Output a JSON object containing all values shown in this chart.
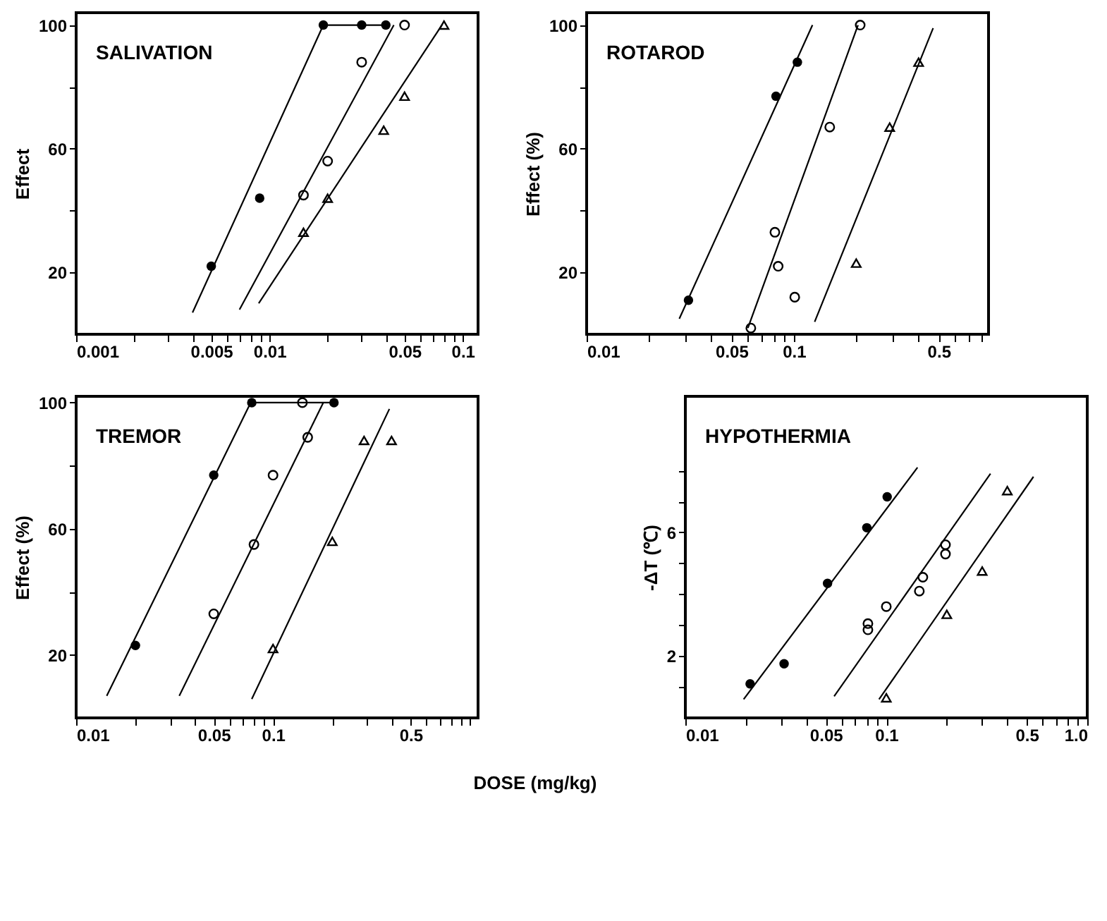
{
  "chart_data": [
    {
      "type": "scatter",
      "title": "SALIVATION",
      "ylabel": "Effect",
      "xlim": [
        0.001,
        0.12
      ],
      "ylim": [
        0,
        104
      ],
      "log": "x",
      "grid": false,
      "xticks": [
        0.001,
        {
          "value": 0.002,
          "label": null
        },
        {
          "value": 0.003,
          "label": null
        },
        {
          "value": 0.004,
          "label": null
        },
        0.005,
        {
          "value": 0.006,
          "label": null
        },
        {
          "value": 0.007,
          "label": null
        },
        {
          "value": 0.008,
          "label": null
        },
        {
          "value": 0.009,
          "label": null
        },
        0.01,
        {
          "value": 0.02,
          "label": null
        },
        {
          "value": 0.03,
          "label": null
        },
        {
          "value": 0.04,
          "label": null
        },
        0.05,
        {
          "value": 0.06,
          "label": null
        },
        {
          "value": 0.07,
          "label": null
        },
        {
          "value": 0.08,
          "label": null
        },
        {
          "value": 0.09,
          "label": null
        },
        0.1
      ],
      "yticks": [
        20,
        {
          "value": 40,
          "label": null
        },
        60,
        {
          "value": 80,
          "label": null
        },
        100
      ],
      "series": [
        {
          "type": "line",
          "color": "#000000",
          "marker": "none",
          "line_style": "solid",
          "x": [
            0.004,
            0.019,
            0.04
          ],
          "values": [
            7,
            100,
            100
          ]
        },
        {
          "type": "line",
          "color": "#000000",
          "marker": "none",
          "line_style": "solid",
          "x": [
            0.007,
            0.044
          ],
          "values": [
            8,
            100
          ]
        },
        {
          "type": "line",
          "color": "#000000",
          "marker": "none",
          "line_style": "solid",
          "x": [
            0.0088,
            0.078
          ],
          "values": [
            10,
            100
          ]
        },
        {
          "color": "#000000",
          "marker": "circle",
          "x": [
            0.005,
            0.0089,
            0.019,
            0.03,
            0.04
          ],
          "values": [
            22,
            44,
            100,
            100,
            100
          ]
        },
        {
          "color": "#000000",
          "marker": "circle",
          "x": [
            0.015,
            0.02,
            0.03,
            0.05
          ],
          "values": [
            45,
            56,
            88,
            100
          ]
        },
        {
          "color": "#000000",
          "marker": "triangle",
          "x": [
            0.015,
            0.02,
            0.039,
            0.05,
            0.08
          ],
          "values": [
            33,
            44,
            66,
            77,
            100
          ]
        }
      ]
    },
    {
      "type": "scatter",
      "title": "ROTAROD",
      "ylabel": "Effect (%)",
      "xlim": [
        0.01,
        0.87
      ],
      "ylim": [
        0,
        104
      ],
      "log": "x",
      "grid": false,
      "xticks": [
        0.01,
        {
          "value": 0.02,
          "label": null
        },
        {
          "value": 0.03,
          "label": null
        },
        {
          "value": 0.04,
          "label": null
        },
        0.05,
        {
          "value": 0.06,
          "label": null
        },
        {
          "value": 0.07,
          "label": null
        },
        {
          "value": 0.08,
          "label": null
        },
        {
          "value": 0.09,
          "label": null
        },
        0.1,
        {
          "value": 0.2,
          "label": null
        },
        {
          "value": 0.3,
          "label": null
        },
        {
          "value": 0.4,
          "label": null
        },
        0.5,
        {
          "value": 0.6,
          "label": null
        },
        {
          "value": 0.7,
          "label": null
        },
        {
          "value": 0.8,
          "label": null
        }
      ],
      "yticks": [
        20,
        {
          "value": 40,
          "label": null
        },
        60,
        {
          "value": 80,
          "label": null
        },
        100
      ],
      "series": [
        {
          "type": "line",
          "color": "#000000",
          "marker": "none",
          "line_style": "solid",
          "x": [
            0.028,
            0.123
          ],
          "values": [
            5,
            100
          ]
        },
        {
          "type": "line",
          "color": "#000000",
          "marker": "none",
          "line_style": "solid",
          "x": [
            0.06,
            0.204
          ],
          "values": [
            2,
            100
          ]
        },
        {
          "type": "line",
          "color": "#000000",
          "marker": "none",
          "line_style": "solid",
          "x": [
            0.126,
            0.47
          ],
          "values": [
            4,
            99
          ]
        },
        {
          "color": "#000000",
          "marker": "circle",
          "x": [
            0.031,
            0.082,
            0.104
          ],
          "values": [
            11,
            77,
            88
          ]
        },
        {
          "color": "#000000",
          "marker": "circle",
          "x": [
            0.062,
            0.081,
            0.084,
            0.101,
            0.149,
            0.209
          ],
          "values": [
            2,
            33,
            22,
            12,
            67,
            100
          ]
        },
        {
          "color": "#000000",
          "marker": "triangle",
          "x": [
            0.2,
            0.29,
            0.4
          ],
          "values": [
            23,
            67,
            88
          ]
        }
      ]
    },
    {
      "type": "scatter",
      "title": "TREMOR",
      "ylabel": "Effect (%)",
      "xlabel": "DOSE (mg/kg)",
      "xlim": [
        0.01,
        1.1
      ],
      "ylim": [
        0,
        102
      ],
      "log": "x",
      "grid": false,
      "xticks": [
        0.01,
        {
          "value": 0.02,
          "label": null
        },
        {
          "value": 0.03,
          "label": null
        },
        {
          "value": 0.04,
          "label": null
        },
        0.05,
        {
          "value": 0.06,
          "label": null
        },
        {
          "value": 0.07,
          "label": null
        },
        {
          "value": 0.08,
          "label": null
        },
        {
          "value": 0.09,
          "label": null
        },
        0.1,
        {
          "value": 0.2,
          "label": null
        },
        {
          "value": 0.3,
          "label": null
        },
        {
          "value": 0.4,
          "label": null
        },
        0.5,
        {
          "value": 0.6,
          "label": null
        },
        {
          "value": 0.7,
          "label": null
        },
        {
          "value": 0.8,
          "label": null
        },
        {
          "value": 0.9,
          "label": null
        },
        {
          "value": 1,
          "label": null
        }
      ],
      "yticks": [
        20,
        {
          "value": 40,
          "label": null
        },
        60,
        {
          "value": 80,
          "label": null
        },
        100
      ],
      "series": [
        {
          "type": "line",
          "color": "#000000",
          "marker": "none",
          "line_style": "solid",
          "x": [
            0.0143,
            0.077,
            0.21
          ],
          "values": [
            7,
            100,
            100
          ]
        },
        {
          "type": "line",
          "color": "#000000",
          "marker": "none",
          "line_style": "solid",
          "x": [
            0.0334,
            0.18
          ],
          "values": [
            7,
            100
          ]
        },
        {
          "type": "line",
          "color": "#000000",
          "marker": "none",
          "line_style": "solid",
          "x": [
            0.078,
            0.39
          ],
          "values": [
            6,
            98
          ]
        },
        {
          "color": "#000000",
          "marker": "circle",
          "x": [
            0.02,
            0.05,
            0.078,
            0.204
          ],
          "values": [
            23,
            77,
            100,
            100
          ]
        },
        {
          "color": "#000000",
          "marker": "circle",
          "x": [
            0.05,
            0.08,
            0.1,
            0.15,
            0.141
          ],
          "values": [
            33,
            55,
            77,
            89,
            100
          ]
        },
        {
          "color": "#000000",
          "marker": "triangle",
          "x": [
            0.1,
            0.2,
            0.29,
            0.4
          ],
          "values": [
            22,
            56,
            88,
            88
          ]
        }
      ]
    },
    {
      "type": "scatter",
      "title": "HYPOTHERMIA",
      "ylabel": "-ΔT (℃)",
      "xlim": [
        0.01,
        1.0
      ],
      "ylim": [
        0,
        10.4
      ],
      "log": "x",
      "grid": false,
      "xticks": [
        0.01,
        {
          "value": 0.02,
          "label": null
        },
        {
          "value": 0.03,
          "label": null
        },
        {
          "value": 0.04,
          "label": null
        },
        0.05,
        {
          "value": 0.06,
          "label": null
        },
        {
          "value": 0.07,
          "label": null
        },
        {
          "value": 0.08,
          "label": null
        },
        {
          "value": 0.09,
          "label": null
        },
        0.1,
        {
          "value": 0.2,
          "label": null
        },
        {
          "value": 0.3,
          "label": null
        },
        {
          "value": 0.4,
          "label": null
        },
        0.5,
        {
          "value": 0.6,
          "label": null
        },
        {
          "value": 0.7,
          "label": null
        },
        {
          "value": 0.8,
          "label": null
        },
        {
          "value": 0.9,
          "label": null
        },
        {
          "value": 1.0,
          "label": "1.0"
        }
      ],
      "yticks": [
        {
          "value": 1,
          "label": null
        },
        2,
        {
          "value": 3,
          "label": null
        },
        {
          "value": 4,
          "label": null
        },
        {
          "value": 5,
          "label": null
        },
        6,
        {
          "value": 7,
          "label": null
        },
        {
          "value": 8,
          "label": null
        }
      ],
      "series": [
        {
          "type": "line",
          "color": "#000000",
          "marker": "none",
          "line_style": "solid",
          "x": [
            0.0195,
            0.143
          ],
          "values": [
            0.6,
            8.1
          ]
        },
        {
          "type": "line",
          "color": "#000000",
          "marker": "none",
          "line_style": "solid",
          "x": [
            0.055,
            0.33
          ],
          "values": [
            0.7,
            7.9
          ]
        },
        {
          "type": "line",
          "color": "#000000",
          "marker": "none",
          "line_style": "solid",
          "x": [
            0.092,
            0.54
          ],
          "values": [
            0.6,
            7.8
          ]
        },
        {
          "color": "#000000",
          "marker": "circle",
          "x": [
            0.021,
            0.031,
            0.051,
            0.08,
            0.101
          ],
          "values": [
            1.1,
            1.75,
            4.35,
            6.15,
            7.15
          ]
        },
        {
          "color": "#000000",
          "marker": "circle",
          "x": [
            0.081,
            0.081,
            0.1,
            0.146,
            0.152,
            0.197,
            0.197
          ],
          "values": [
            3.05,
            2.85,
            3.6,
            4.1,
            4.55,
            5.6,
            5.3
          ]
        },
        {
          "color": "#000000",
          "marker": "triangle",
          "x": [
            0.1,
            0.2,
            0.3,
            0.4
          ],
          "values": [
            0.65,
            3.35,
            4.75,
            7.35
          ]
        }
      ]
    }
  ]
}
